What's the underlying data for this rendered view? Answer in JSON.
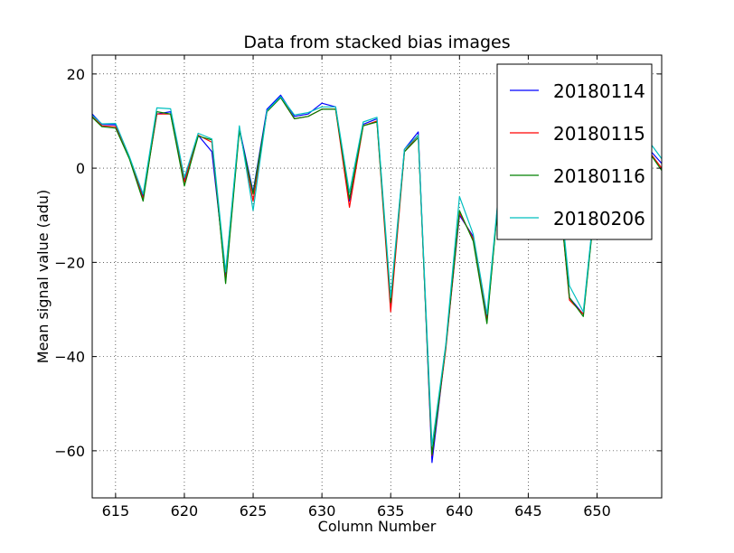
{
  "chart_data": {
    "type": "line",
    "title": "Data from stacked bias images",
    "xlabel": "Column Number",
    "ylabel": "Mean signal value (adu)",
    "xlim": [
      613.3,
      654.7
    ],
    "ylim": [
      -70,
      24
    ],
    "xticks": [
      615,
      620,
      625,
      630,
      635,
      640,
      645,
      650
    ],
    "yticks": [
      -60,
      -40,
      -20,
      0,
      20
    ],
    "ytick_labels": [
      "−60",
      "−40",
      "−20",
      "0",
      "20"
    ],
    "grid": true,
    "legend_position": "top-right",
    "x": [
      613.3,
      614,
      615,
      616,
      617,
      618,
      619,
      620,
      621,
      622,
      623,
      624,
      625,
      626,
      627,
      628,
      629,
      630,
      631,
      632,
      633,
      634,
      635,
      636,
      637,
      638,
      639,
      640,
      641,
      642,
      643,
      644,
      645,
      646,
      647,
      648,
      649,
      650,
      651,
      652,
      653,
      654,
      654.7
    ],
    "series": [
      {
        "name": "20180114",
        "color": "#0000ff",
        "values": [
          11.5,
          9.3,
          9.2,
          2.2,
          -6,
          11.5,
          12,
          -2.5,
          7,
          3.5,
          -22.5,
          8.5,
          -5,
          12.5,
          15.5,
          11,
          11.5,
          13.8,
          13,
          -7,
          9.3,
          10.5,
          -29,
          4,
          7.7,
          -62.5,
          -38,
          -10,
          -14.5,
          -32,
          -1,
          4,
          5.5,
          4.5,
          3,
          -27.5,
          -31,
          -3,
          3,
          5,
          4,
          3.3,
          1
        ]
      },
      {
        "name": "20180115",
        "color": "#ff0000",
        "values": [
          11,
          9,
          8.8,
          2.2,
          -6.5,
          11.5,
          11.5,
          -3,
          7,
          5.5,
          -24,
          8.5,
          -7,
          12,
          15,
          10.5,
          11,
          12.5,
          12.5,
          -8.3,
          9,
          10,
          -30.5,
          3.5,
          7,
          -61,
          -38.5,
          -9.5,
          -15,
          -32.5,
          -0.8,
          3.7,
          5,
          4.3,
          2.7,
          -28,
          -31,
          -3.5,
          2.7,
          4.5,
          3.7,
          2.7,
          0
        ]
      },
      {
        "name": "20180116",
        "color": "#008000",
        "values": [
          10.8,
          8.8,
          8.5,
          2,
          -7,
          12,
          11.5,
          -3.8,
          6.8,
          6,
          -24.5,
          8,
          -5.5,
          12,
          15,
          10.5,
          11,
          12.5,
          12.5,
          -6.5,
          9,
          9.8,
          -28.5,
          3.5,
          6.5,
          -60.8,
          -38,
          -9,
          -15.5,
          -33,
          -1,
          3.5,
          5,
          4,
          2.5,
          -27.5,
          -31.5,
          -3.5,
          2.5,
          4.2,
          3.3,
          2.5,
          -0.5
        ]
      },
      {
        "name": "20180206",
        "color": "#00bfbf",
        "values": [
          11.2,
          9.4,
          9.5,
          2.5,
          -5.5,
          12.8,
          12.6,
          -2,
          7.4,
          6.2,
          -22,
          9,
          -9,
          12.2,
          15.2,
          11.3,
          11.8,
          13,
          13,
          -5.2,
          9.8,
          10.8,
          -27.5,
          4,
          7,
          -59,
          -37.5,
          -6,
          -14,
          -31,
          -0.5,
          4.5,
          6,
          5,
          3.5,
          -25,
          -30.5,
          -2.5,
          3.5,
          5.5,
          4.5,
          4.8,
          2
        ]
      }
    ]
  }
}
